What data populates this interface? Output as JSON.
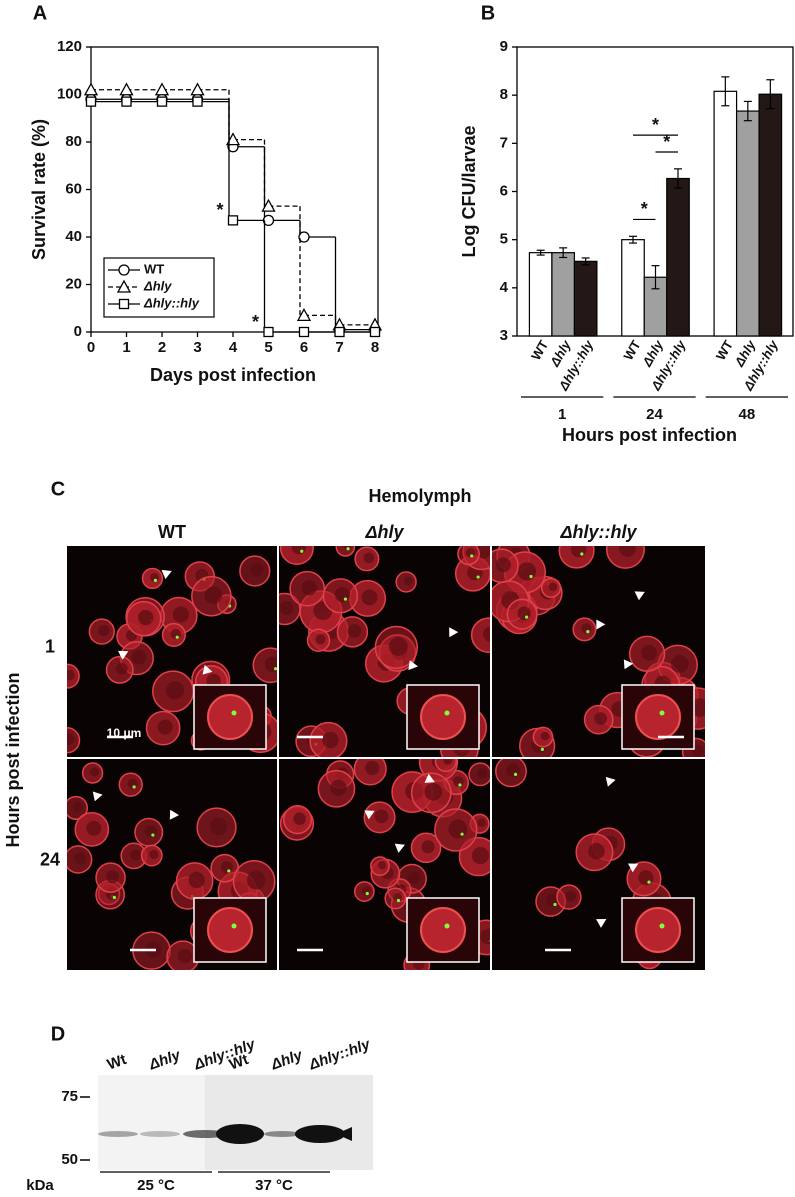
{
  "panel_labels": [
    "A",
    "B",
    "C",
    "D"
  ],
  "chart_data": [
    {
      "type": "line",
      "step": true,
      "xlabel": "Days post infection",
      "ylabel": "Survival rate (%)",
      "x": [
        0,
        1,
        2,
        3,
        4,
        5,
        6,
        7,
        8
      ],
      "xlim": [
        0,
        8
      ],
      "xticks": [
        0,
        1,
        2,
        3,
        4,
        5,
        6,
        7,
        8
      ],
      "ylim": [
        0,
        120
      ],
      "yticks": [
        0,
        20,
        40,
        60,
        80,
        100,
        120
      ],
      "legend": "lower left",
      "series": [
        {
          "name": "WT",
          "marker": "circle",
          "dashed": false,
          "color": "#000000",
          "values": [
            98,
            98,
            98,
            98,
            78,
            47,
            40,
            1,
            1
          ]
        },
        {
          "name": "Δhly",
          "marker": "triangle",
          "dashed": true,
          "color": "#000000",
          "values": [
            102,
            102,
            102,
            102,
            81,
            53,
            7,
            3,
            3
          ]
        },
        {
          "name": "Δhly::hly",
          "marker": "square",
          "dashed": false,
          "color": "#000000",
          "values": [
            97,
            97,
            97,
            97,
            47,
            0,
            0,
            0,
            0
          ]
        }
      ],
      "annotations": [
        {
          "text": "*",
          "series": 2,
          "index": 4
        },
        {
          "text": "*",
          "series": 2,
          "index": 5
        }
      ]
    },
    {
      "type": "bar",
      "xlabel": "Hours post infection",
      "ylabel": "Log CFU/larvae",
      "categories": [
        "1",
        "24",
        "48"
      ],
      "ylim": [
        3,
        9
      ],
      "yticks": [
        3,
        4,
        5,
        6,
        7,
        8,
        9
      ],
      "series": [
        {
          "name": "WT",
          "color": "#ffffff",
          "values": [
            4.73,
            5.0,
            8.08
          ],
          "errors": [
            0.05,
            0.07,
            0.3
          ]
        },
        {
          "name": "Δhly",
          "color": "#a0a0a0",
          "values": [
            4.73,
            4.22,
            7.67
          ],
          "errors": [
            0.1,
            0.24,
            0.2
          ]
        },
        {
          "name": "Δhly::hly",
          "color": "#231815",
          "values": [
            4.55,
            6.27,
            8.02
          ],
          "errors": [
            0.07,
            0.2,
            0.3
          ]
        }
      ],
      "significance": [
        {
          "text": "*",
          "category": 1,
          "between": [
            0,
            1
          ]
        },
        {
          "text": "*",
          "category": 1,
          "between": [
            1,
            2
          ]
        },
        {
          "text": "*",
          "category": 1,
          "between": [
            0,
            2
          ]
        }
      ]
    }
  ],
  "micrographs": {
    "title": "Hemolymph",
    "columns": [
      "WT",
      "Δhly",
      "Δhly::hly"
    ],
    "rows": [
      "1",
      "24"
    ],
    "row_label": "Hours post infection",
    "scale_bar": "10 μm"
  },
  "blot": {
    "lanes": [
      "Wt",
      "Δhly",
      "Δhly::hly",
      "Wt",
      "Δhly",
      "Δhly::hly"
    ],
    "markers": [
      75,
      50
    ],
    "unit": "kDa",
    "groups": [
      "25 °C",
      "37 °C"
    ]
  }
}
